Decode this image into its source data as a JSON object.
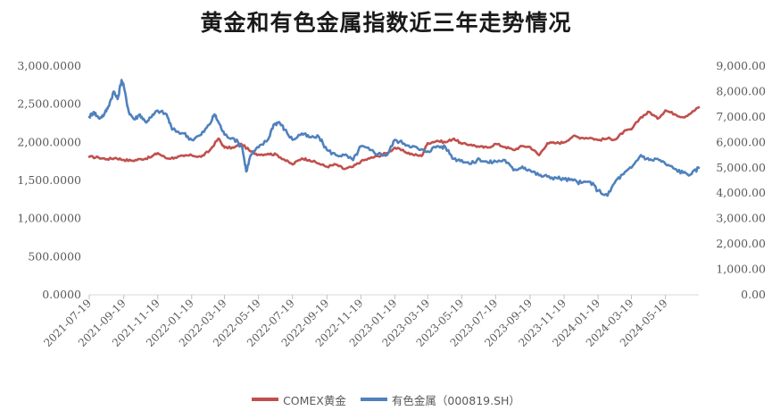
{
  "chart_data": {
    "type": "line",
    "title": "黄金和有色金属指数近三年走势情况",
    "xlabel": "",
    "ylabel_left": "",
    "ylabel_right": "",
    "x_ticks": [
      "2021-07-19",
      "2021-09-19",
      "2021-11-19",
      "2022-01-19",
      "2022-03-19",
      "2022-05-19",
      "2022-07-19",
      "2022-09-19",
      "2022-11-19",
      "2023-01-19",
      "2023-03-19",
      "2023-05-19",
      "2023-07-19",
      "2023-09-19",
      "2023-11-19",
      "2024-01-19",
      "2024-03-19",
      "2024-05-19"
    ],
    "y_left": {
      "min": 0,
      "max": 3000,
      "ticks": [
        "0.0000",
        "500.0000",
        "1,000.0000",
        "1,500.0000",
        "2,000.0000",
        "2,500.0000",
        "3,000.0000"
      ]
    },
    "y_right": {
      "min": 0,
      "max": 9000,
      "ticks": [
        "0.00",
        "1,000.00",
        "2,000.00",
        "3,000.00",
        "4,000.00",
        "5,000.00",
        "6,000.00",
        "7,000.00",
        "8,000.00",
        "9,000.00"
      ]
    },
    "grid": false,
    "legend_position": "bottom",
    "series": [
      {
        "name": "COMEX黄金",
        "axis": "left",
        "color": "#C0504D",
        "points": [
          [
            "2021-07-19",
            1810
          ],
          [
            "2021-08-05",
            1800
          ],
          [
            "2021-08-20",
            1780
          ],
          [
            "2021-09-05",
            1795
          ],
          [
            "2021-09-19",
            1770
          ],
          [
            "2021-10-05",
            1760
          ],
          [
            "2021-10-20",
            1780
          ],
          [
            "2021-11-05",
            1800
          ],
          [
            "2021-11-19",
            1860
          ],
          [
            "2021-12-05",
            1790
          ],
          [
            "2021-12-20",
            1800
          ],
          [
            "2022-01-05",
            1820
          ],
          [
            "2022-01-19",
            1830
          ],
          [
            "2022-02-05",
            1810
          ],
          [
            "2022-02-20",
            1890
          ],
          [
            "2022-03-08",
            2050
          ],
          [
            "2022-03-19",
            1930
          ],
          [
            "2022-04-05",
            1930
          ],
          [
            "2022-04-18",
            1980
          ],
          [
            "2022-05-05",
            1880
          ],
          [
            "2022-05-19",
            1840
          ],
          [
            "2022-06-05",
            1850
          ],
          [
            "2022-06-20",
            1840
          ],
          [
            "2022-07-05",
            1770
          ],
          [
            "2022-07-19",
            1710
          ],
          [
            "2022-08-05",
            1790
          ],
          [
            "2022-08-18",
            1770
          ],
          [
            "2022-09-05",
            1720
          ],
          [
            "2022-09-19",
            1680
          ],
          [
            "2022-10-05",
            1710
          ],
          [
            "2022-10-20",
            1650
          ],
          [
            "2022-11-05",
            1680
          ],
          [
            "2022-11-19",
            1750
          ],
          [
            "2022-12-05",
            1790
          ],
          [
            "2022-12-20",
            1820
          ],
          [
            "2023-01-05",
            1860
          ],
          [
            "2023-01-19",
            1930
          ],
          [
            "2023-02-05",
            1880
          ],
          [
            "2023-02-20",
            1840
          ],
          [
            "2023-03-08",
            1820
          ],
          [
            "2023-03-19",
            1990
          ],
          [
            "2023-04-05",
            2020
          ],
          [
            "2023-04-20",
            2000
          ],
          [
            "2023-05-05",
            2050
          ],
          [
            "2023-05-19",
            1980
          ],
          [
            "2023-06-05",
            1970
          ],
          [
            "2023-06-20",
            1940
          ],
          [
            "2023-07-05",
            1930
          ],
          [
            "2023-07-19",
            1980
          ],
          [
            "2023-08-05",
            1940
          ],
          [
            "2023-08-20",
            1900
          ],
          [
            "2023-09-05",
            1950
          ],
          [
            "2023-09-19",
            1940
          ],
          [
            "2023-10-05",
            1830
          ],
          [
            "2023-10-20",
            1990
          ],
          [
            "2023-11-05",
            1990
          ],
          [
            "2023-11-19",
            2000
          ],
          [
            "2023-12-05",
            2080
          ],
          [
            "2023-12-20",
            2060
          ],
          [
            "2024-01-05",
            2060
          ],
          [
            "2024-01-19",
            2030
          ],
          [
            "2024-02-05",
            2050
          ],
          [
            "2024-02-20",
            2040
          ],
          [
            "2024-03-05",
            2140
          ],
          [
            "2024-03-19",
            2170
          ],
          [
            "2024-04-05",
            2330
          ],
          [
            "2024-04-20",
            2400
          ],
          [
            "2024-05-05",
            2310
          ],
          [
            "2024-05-19",
            2420
          ],
          [
            "2024-06-05",
            2370
          ],
          [
            "2024-06-20",
            2330
          ],
          [
            "2024-07-05",
            2390
          ],
          [
            "2024-07-18",
            2460
          ]
        ]
      },
      {
        "name": "有色金属（000819.SH）",
        "axis": "right",
        "color": "#4F81BD",
        "points": [
          [
            "2021-07-19",
            7000
          ],
          [
            "2021-07-27",
            7200
          ],
          [
            "2021-08-05",
            6950
          ],
          [
            "2021-08-15",
            7100
          ],
          [
            "2021-08-22",
            7400
          ],
          [
            "2021-09-01",
            8000
          ],
          [
            "2021-09-08",
            7700
          ],
          [
            "2021-09-15",
            8450
          ],
          [
            "2021-09-19",
            8200
          ],
          [
            "2021-09-28",
            7200
          ],
          [
            "2021-10-08",
            6900
          ],
          [
            "2021-10-18",
            7100
          ],
          [
            "2021-10-28",
            6800
          ],
          [
            "2021-11-08",
            7000
          ],
          [
            "2021-11-19",
            7250
          ],
          [
            "2021-12-05",
            7100
          ],
          [
            "2021-12-15",
            6500
          ],
          [
            "2022-01-05",
            6350
          ],
          [
            "2022-01-19",
            6100
          ],
          [
            "2022-02-05",
            6300
          ],
          [
            "2022-02-20",
            6700
          ],
          [
            "2022-03-01",
            7100
          ],
          [
            "2022-03-08",
            6800
          ],
          [
            "2022-03-19",
            6300
          ],
          [
            "2022-04-05",
            6150
          ],
          [
            "2022-04-20",
            5800
          ],
          [
            "2022-04-27",
            4850
          ],
          [
            "2022-05-05",
            5500
          ],
          [
            "2022-05-19",
            5800
          ],
          [
            "2022-06-05",
            6100
          ],
          [
            "2022-06-15",
            6700
          ],
          [
            "2022-06-25",
            6800
          ],
          [
            "2022-07-05",
            6500
          ],
          [
            "2022-07-19",
            6100
          ],
          [
            "2022-08-05",
            6350
          ],
          [
            "2022-08-18",
            6200
          ],
          [
            "2022-09-05",
            6200
          ],
          [
            "2022-09-19",
            5700
          ],
          [
            "2022-10-05",
            5500
          ],
          [
            "2022-10-20",
            5500
          ],
          [
            "2022-11-05",
            5300
          ],
          [
            "2022-11-19",
            5850
          ],
          [
            "2022-12-05",
            5700
          ],
          [
            "2022-12-20",
            5550
          ],
          [
            "2023-01-05",
            5500
          ],
          [
            "2023-01-19",
            6100
          ],
          [
            "2023-02-05",
            5950
          ],
          [
            "2023-02-20",
            5850
          ],
          [
            "2023-03-05",
            5700
          ],
          [
            "2023-03-19",
            5650
          ],
          [
            "2023-04-05",
            5850
          ],
          [
            "2023-04-20",
            5800
          ],
          [
            "2023-05-05",
            5350
          ],
          [
            "2023-05-19",
            5300
          ],
          [
            "2023-06-05",
            5150
          ],
          [
            "2023-06-20",
            5350
          ],
          [
            "2023-07-05",
            5200
          ],
          [
            "2023-07-19",
            5250
          ],
          [
            "2023-08-05",
            5300
          ],
          [
            "2023-08-20",
            4900
          ],
          [
            "2023-09-05",
            5050
          ],
          [
            "2023-09-19",
            4900
          ],
          [
            "2023-10-05",
            4700
          ],
          [
            "2023-10-20",
            4650
          ],
          [
            "2023-11-05",
            4600
          ],
          [
            "2023-11-19",
            4550
          ],
          [
            "2023-12-05",
            4500
          ],
          [
            "2023-12-20",
            4400
          ],
          [
            "2024-01-05",
            4450
          ],
          [
            "2024-01-19",
            4100
          ],
          [
            "2024-02-05",
            3900
          ],
          [
            "2024-02-20",
            4500
          ],
          [
            "2024-03-05",
            4750
          ],
          [
            "2024-03-19",
            5000
          ],
          [
            "2024-04-05",
            5500
          ],
          [
            "2024-04-20",
            5300
          ],
          [
            "2024-05-05",
            5350
          ],
          [
            "2024-05-19",
            5150
          ],
          [
            "2024-06-05",
            4950
          ],
          [
            "2024-06-20",
            4800
          ],
          [
            "2024-07-05",
            4750
          ],
          [
            "2024-07-18",
            5000
          ]
        ]
      }
    ]
  }
}
